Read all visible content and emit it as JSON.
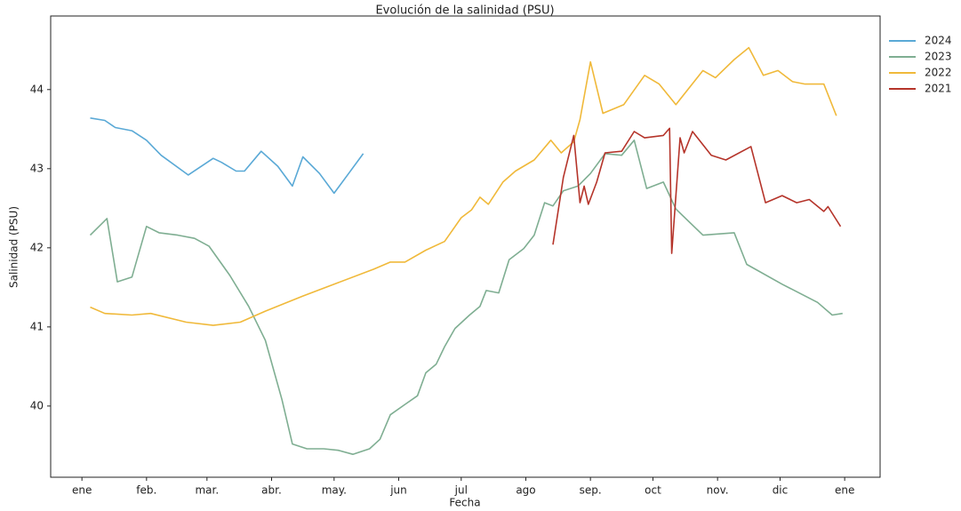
{
  "chart_data": {
    "type": "line",
    "title": "Evolución de la salinidad (PSU)",
    "xlabel": "Fecha",
    "ylabel": "Salinidad (PSU)",
    "xlim": [
      -15,
      383
    ],
    "ylim": [
      39.1,
      44.93
    ],
    "xticks": [
      {
        "value": 0,
        "label": "ene"
      },
      {
        "value": 31,
        "label": "feb."
      },
      {
        "value": 60,
        "label": "mar."
      },
      {
        "value": 91,
        "label": "abr."
      },
      {
        "value": 121,
        "label": "may."
      },
      {
        "value": 152,
        "label": "jun"
      },
      {
        "value": 182,
        "label": "jul"
      },
      {
        "value": 213,
        "label": "ago"
      },
      {
        "value": 244,
        "label": "sep."
      },
      {
        "value": 274,
        "label": "oct"
      },
      {
        "value": 305,
        "label": "nov."
      },
      {
        "value": 335,
        "label": "dic"
      },
      {
        "value": 366,
        "label": "ene"
      }
    ],
    "yticks": [
      40,
      41,
      42,
      43,
      44
    ],
    "grid": false,
    "legend": "outside-upper-right",
    "series": [
      {
        "name": "2024",
        "color": "#5aa9d6",
        "x": [
          4,
          11,
          16,
          24,
          31,
          38,
          51,
          63,
          67,
          74,
          78,
          86,
          94,
          101,
          106,
          114,
          121,
          128,
          135
        ],
        "values": [
          43.64,
          43.61,
          43.52,
          43.48,
          43.36,
          43.17,
          42.92,
          43.13,
          43.08,
          42.97,
          42.97,
          43.22,
          43.03,
          42.78,
          43.15,
          42.94,
          42.69,
          42.94,
          43.19
        ]
      },
      {
        "name": "2023",
        "color": "#7fae92",
        "x": [
          4,
          12,
          17,
          24,
          31,
          37,
          46,
          54,
          61,
          71,
          80,
          88,
          96,
          101,
          108,
          116,
          123,
          130,
          138,
          143,
          148,
          155,
          161,
          165,
          170,
          174,
          179,
          186,
          191,
          194,
          200,
          205,
          212,
          217,
          222,
          226,
          231,
          238,
          244,
          251,
          259,
          265,
          271,
          279,
          285,
          298,
          313,
          319,
          336,
          353,
          360,
          365
        ],
        "values": [
          42.16,
          42.37,
          41.57,
          41.63,
          42.27,
          42.19,
          42.16,
          42.12,
          42.02,
          41.65,
          41.26,
          40.83,
          40.08,
          39.52,
          39.46,
          39.46,
          39.44,
          39.39,
          39.46,
          39.58,
          39.89,
          40.02,
          40.13,
          40.42,
          40.53,
          40.75,
          40.98,
          41.15,
          41.26,
          41.46,
          41.43,
          41.85,
          41.99,
          42.16,
          42.57,
          42.53,
          42.72,
          42.78,
          42.94,
          43.19,
          43.17,
          43.36,
          42.75,
          42.83,
          42.49,
          42.16,
          42.19,
          41.79,
          41.54,
          41.31,
          41.15,
          41.17
        ]
      },
      {
        "name": "2022",
        "color": "#f0b93a",
        "x": [
          4,
          11,
          24,
          33,
          50,
          63,
          76,
          88,
          106,
          123,
          140,
          148,
          155,
          165,
          174,
          182,
          187,
          191,
          195,
          202,
          208,
          217,
          225,
          230,
          236,
          239,
          244,
          250,
          260,
          270,
          277,
          285,
          298,
          304,
          313,
          320,
          327,
          334,
          341,
          347,
          356,
          362
        ],
        "values": [
          41.25,
          41.17,
          41.15,
          41.17,
          41.06,
          41.02,
          41.06,
          41.2,
          41.39,
          41.56,
          41.73,
          41.82,
          41.82,
          41.97,
          42.08,
          42.38,
          42.48,
          42.64,
          42.55,
          42.83,
          42.97,
          43.11,
          43.36,
          43.2,
          43.34,
          43.62,
          44.35,
          43.7,
          43.81,
          44.18,
          44.07,
          43.81,
          44.24,
          44.15,
          44.38,
          44.53,
          44.18,
          44.24,
          44.1,
          44.07,
          44.07,
          43.67
        ]
      },
      {
        "name": "2021",
        "color": "#b5342a",
        "x": [
          226,
          231,
          236,
          239,
          241,
          243,
          247,
          251,
          259,
          265,
          270,
          279,
          282,
          283,
          287,
          289,
          293,
          302,
          309,
          321,
          328,
          336,
          343,
          349,
          356,
          358,
          364
        ],
        "values": [
          42.04,
          42.89,
          43.42,
          42.57,
          42.78,
          42.55,
          42.83,
          43.2,
          43.22,
          43.47,
          43.39,
          43.42,
          43.51,
          41.93,
          43.39,
          43.2,
          43.47,
          43.17,
          43.11,
          43.28,
          42.57,
          42.66,
          42.57,
          42.61,
          42.46,
          42.52,
          42.27
        ]
      }
    ]
  }
}
